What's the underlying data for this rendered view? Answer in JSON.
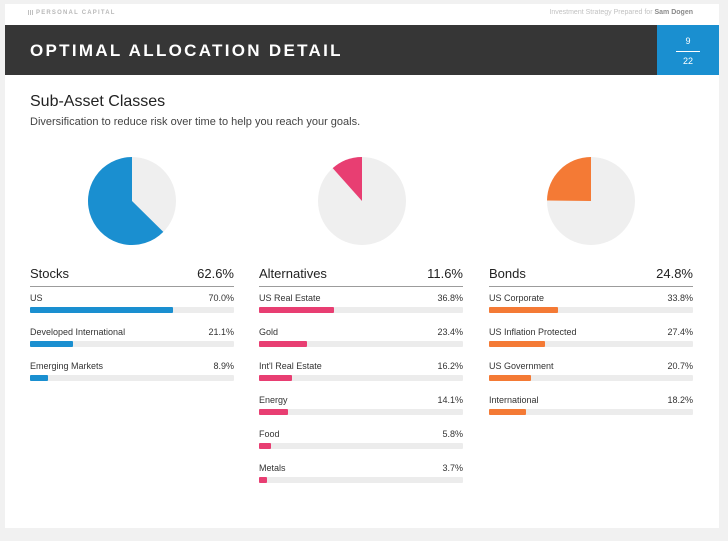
{
  "brand": "PERSONAL CAPITAL",
  "prepared_prefix": "Investment Strategy Prepared for",
  "prepared_name": "Sam Dogen",
  "header": {
    "title": "OPTIMAL ALLOCATION DETAIL",
    "page": "9",
    "total": "22"
  },
  "section": {
    "title": "Sub-Asset Classes",
    "subtitle": "Diversification to reduce risk over time to help you reach your goals."
  },
  "groups": [
    {
      "name": "Stocks",
      "pct": "62.6%",
      "share": 62.6,
      "color": "#1a8fd0",
      "items": [
        {
          "label": "US",
          "pct": "70.0%",
          "value": 70.0
        },
        {
          "label": "Developed International",
          "pct": "21.1%",
          "value": 21.1
        },
        {
          "label": "Emerging Markets",
          "pct": "8.9%",
          "value": 8.9
        }
      ]
    },
    {
      "name": "Alternatives",
      "pct": "11.6%",
      "share": 11.6,
      "color": "#e83e72",
      "items": [
        {
          "label": "US Real Estate",
          "pct": "36.8%",
          "value": 36.8
        },
        {
          "label": "Gold",
          "pct": "23.4%",
          "value": 23.4
        },
        {
          "label": "Int'l Real Estate",
          "pct": "16.2%",
          "value": 16.2
        },
        {
          "label": "Energy",
          "pct": "14.1%",
          "value": 14.1
        },
        {
          "label": "Food",
          "pct": "5.8%",
          "value": 5.8
        },
        {
          "label": "Metals",
          "pct": "3.7%",
          "value": 3.7
        }
      ]
    },
    {
      "name": "Bonds",
      "pct": "24.8%",
      "share": 24.8,
      "color": "#f47a35",
      "items": [
        {
          "label": "US Corporate",
          "pct": "33.8%",
          "value": 33.8
        },
        {
          "label": "US Inflation Protected",
          "pct": "27.4%",
          "value": 27.4
        },
        {
          "label": "US Government",
          "pct": "20.7%",
          "value": 20.7
        },
        {
          "label": "International",
          "pct": "18.2%",
          "value": 18.2
        }
      ]
    }
  ]
}
